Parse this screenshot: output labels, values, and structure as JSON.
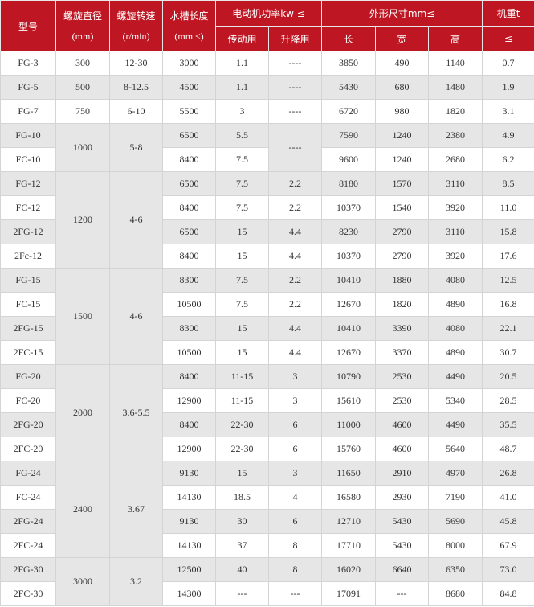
{
  "header": {
    "model": "型号",
    "diameter": "螺旋直径",
    "diameter_unit": "(mm)",
    "speed": "螺旋转速",
    "speed_unit": "(r/min)",
    "length": "水槽长度",
    "length_unit": "(mm ≤)",
    "power": "电动机功率kw ≤",
    "drive": "传动用",
    "lift": "升降用",
    "dims": "外形尺寸mm≤",
    "l": "长",
    "w": "宽",
    "h": "高",
    "weight": "机重t",
    "weight_unit": "≤"
  },
  "colors": {
    "header_bg": "#be1622",
    "row_alt": "#e6e6e6"
  },
  "groups": [
    {
      "diameter": "300",
      "speed": "12-30",
      "rows": [
        {
          "model": "FG-3",
          "length": "3000",
          "drive": "1.1",
          "lift": "----",
          "l": "3850",
          "w": "490",
          "h": "1140",
          "weight": "0.7"
        }
      ]
    },
    {
      "diameter": "500",
      "speed": "8-12.5",
      "rows": [
        {
          "model": "FG-5",
          "length": "4500",
          "drive": "1.1",
          "lift": "----",
          "l": "5430",
          "w": "680",
          "h": "1480",
          "weight": "1.9"
        }
      ]
    },
    {
      "diameter": "750",
      "speed": "6-10",
      "rows": [
        {
          "model": "FG-7",
          "length": "5500",
          "drive": "3",
          "lift": "----",
          "l": "6720",
          "w": "980",
          "h": "1820",
          "weight": "3.1"
        }
      ]
    },
    {
      "diameter": "1000",
      "speed": "5-8",
      "lift_merged": "----",
      "rows": [
        {
          "model": "FG-10",
          "length": "6500",
          "drive": "5.5",
          "l": "7590",
          "w": "1240",
          "h": "2380",
          "weight": "4.9"
        },
        {
          "model": "FC-10",
          "length": "8400",
          "drive": "7.5",
          "l": "9600",
          "w": "1240",
          "h": "2680",
          "weight": "6.2"
        }
      ]
    },
    {
      "diameter": "1200",
      "speed": "4-6",
      "rows": [
        {
          "model": "FG-12",
          "length": "6500",
          "drive": "7.5",
          "lift": "2.2",
          "l": "8180",
          "w": "1570",
          "h": "3110",
          "weight": "8.5"
        },
        {
          "model": "FC-12",
          "length": "8400",
          "drive": "7.5",
          "lift": "2.2",
          "l": "10370",
          "w": "1540",
          "h": "3920",
          "weight": "11.0"
        },
        {
          "model": "2FG-12",
          "length": "6500",
          "drive": "15",
          "lift": "4.4",
          "l": "8230",
          "w": "2790",
          "h": "3110",
          "weight": "15.8"
        },
        {
          "model": "2Fc-12",
          "length": "8400",
          "drive": "15",
          "lift": "4.4",
          "l": "10370",
          "w": "2790",
          "h": "3920",
          "weight": "17.6"
        }
      ]
    },
    {
      "diameter": "1500",
      "speed": "4-6",
      "rows": [
        {
          "model": "FG-15",
          "length": "8300",
          "drive": "7.5",
          "lift": "2.2",
          "l": "10410",
          "w": "1880",
          "h": "4080",
          "weight": "12.5"
        },
        {
          "model": "FC-15",
          "length": "10500",
          "drive": "7.5",
          "lift": "2.2",
          "l": "12670",
          "w": "1820",
          "h": "4890",
          "weight": "16.8"
        },
        {
          "model": "2FG-15",
          "length": "8300",
          "drive": "15",
          "lift": "4.4",
          "l": "10410",
          "w": "3390",
          "h": "4080",
          "weight": "22.1"
        },
        {
          "model": "2FC-15",
          "length": "10500",
          "drive": "15",
          "lift": "4.4",
          "l": "12670",
          "w": "3370",
          "h": "4890",
          "weight": "30.7"
        }
      ]
    },
    {
      "diameter": "2000",
      "speed": "3.6-5.5",
      "rows": [
        {
          "model": "FG-20",
          "length": "8400",
          "drive": "11-15",
          "lift": "3",
          "l": "10790",
          "w": "2530",
          "h": "4490",
          "weight": "20.5"
        },
        {
          "model": "FC-20",
          "length": "12900",
          "drive": "11-15",
          "lift": "3",
          "l": "15610",
          "w": "2530",
          "h": "5340",
          "weight": "28.5"
        },
        {
          "model": "2FG-20",
          "length": "8400",
          "drive": "22-30",
          "lift": "6",
          "l": "11000",
          "w": "4600",
          "h": "4490",
          "weight": "35.5"
        },
        {
          "model": "2FC-20",
          "length": "12900",
          "drive": "22-30",
          "lift": "6",
          "l": "15760",
          "w": "4600",
          "h": "5640",
          "weight": "48.7"
        }
      ]
    },
    {
      "diameter": "2400",
      "speed": "3.67",
      "rows": [
        {
          "model": "FG-24",
          "length": "9130",
          "drive": "15",
          "lift": "3",
          "l": "11650",
          "w": "2910",
          "h": "4970",
          "weight": "26.8"
        },
        {
          "model": "FC-24",
          "length": "14130",
          "drive": "18.5",
          "lift": "4",
          "l": "16580",
          "w": "2930",
          "h": "7190",
          "weight": "41.0"
        },
        {
          "model": "2FG-24",
          "length": "9130",
          "drive": "30",
          "lift": "6",
          "l": "12710",
          "w": "5430",
          "h": "5690",
          "weight": "45.8"
        },
        {
          "model": "2FC-24",
          "length": "14130",
          "drive": "37",
          "lift": "8",
          "l": "17710",
          "w": "5430",
          "h": "8000",
          "weight": "67.9"
        }
      ]
    },
    {
      "diameter": "3000",
      "speed": "3.2",
      "rows": [
        {
          "model": "2FG-30",
          "length": "12500",
          "drive": "40",
          "lift": "8",
          "l": "16020",
          "w": "6640",
          "h": "6350",
          "weight": "73.0"
        },
        {
          "model": "2FC-30",
          "length": "14300",
          "drive": "---",
          "lift": "---",
          "l": "17091",
          "w": "---",
          "h": "8680",
          "weight": "84.8"
        }
      ]
    }
  ]
}
